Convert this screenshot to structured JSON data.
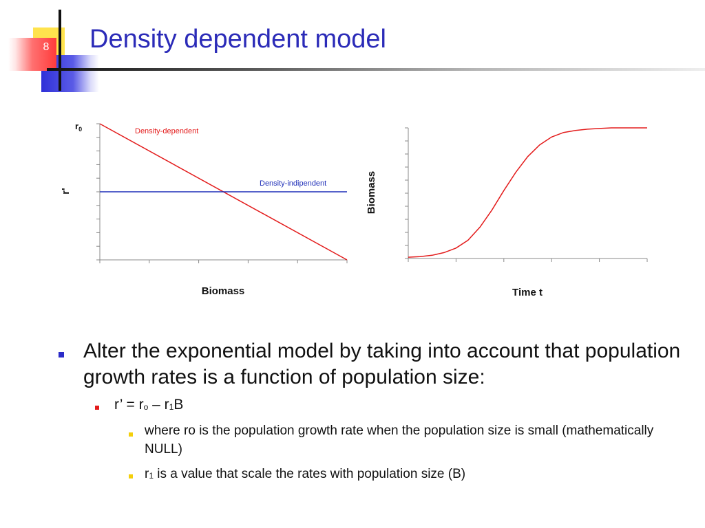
{
  "slide": {
    "number": "8",
    "title": "Density dependent model",
    "colors": {
      "title": "#2b2bb8",
      "accent_blue": "#2f30d8",
      "accent_red": "#ff3b3b",
      "accent_yellow": "#ffe34d"
    }
  },
  "charts": {
    "left": {
      "ylabel": "r'",
      "y_top_label_main": "r",
      "y_top_label_sub": "0",
      "xlabel": "Biomass"
    },
    "right": {
      "ylabel": "Biomass",
      "xlabel": "Time t"
    }
  },
  "chart_data": [
    {
      "type": "line",
      "xlabel": "Biomass",
      "ylabel": "r'",
      "series": [
        {
          "name": "Density-dependent",
          "color": "#e31b1b",
          "x": [
            0,
            1
          ],
          "y": [
            1,
            0
          ]
        },
        {
          "name": "Density-indipendent",
          "color": "#1f2fb8",
          "x": [
            0,
            1
          ],
          "y": [
            0.5,
            0.5
          ]
        }
      ],
      "xlim": [
        0,
        1
      ],
      "ylim": [
        0,
        1
      ],
      "grid": false
    },
    {
      "type": "line",
      "xlabel": "Time t",
      "ylabel": "Biomass",
      "series": [
        {
          "color": "#e31b1b",
          "x": [
            0,
            0.05,
            0.1,
            0.15,
            0.2,
            0.25,
            0.3,
            0.35,
            0.4,
            0.45,
            0.5,
            0.55,
            0.6,
            0.65,
            0.7,
            0.75,
            0.8,
            0.85,
            0.9,
            0.95,
            1.0
          ],
          "y": [
            0.01,
            0.015,
            0.025,
            0.045,
            0.08,
            0.14,
            0.24,
            0.37,
            0.52,
            0.66,
            0.78,
            0.87,
            0.93,
            0.965,
            0.98,
            0.99,
            0.995,
            1.0,
            1.0,
            1.0,
            1.0
          ]
        }
      ],
      "xlim": [
        0,
        1
      ],
      "ylim": [
        0,
        1
      ],
      "grid": false
    }
  ],
  "bullets": {
    "level1": "Alter the exponential model by taking into account that population growth rates is a function of population size:",
    "formula": {
      "a": "r’ = r",
      "a_sub": "o",
      "b": " – r",
      "b_sub": "1",
      "c": "B"
    },
    "sub1": "where ro is the population growth rate when the population size is small (mathematically NULL)",
    "sub2": {
      "a": "r",
      "a_sub": "1",
      "b": " is a value that scale the rates with population size (B)"
    }
  }
}
